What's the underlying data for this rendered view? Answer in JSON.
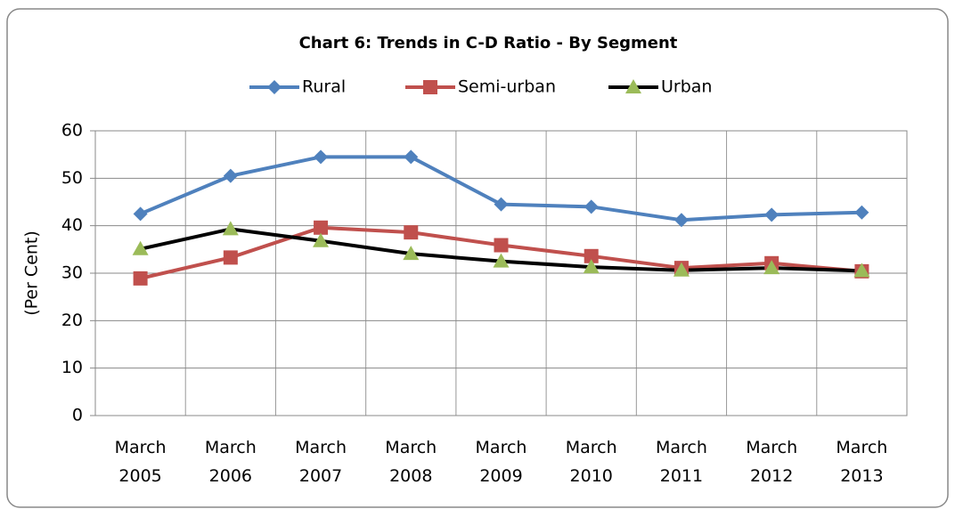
{
  "chart_data": {
    "type": "line",
    "title": "Chart 6: Trends in C-D Ratio - By Segment",
    "y_label": "(Per Cent)",
    "categories": [
      "March 2005",
      "March 2006",
      "March 2007",
      "March 2008",
      "March 2009",
      "March 2010",
      "March 2011",
      "March 2012",
      "March 2013"
    ],
    "series": [
      {
        "name": "Rural",
        "color": "#4f81bd",
        "marker": "diamond",
        "marker_color": "#4f81bd",
        "values": [
          42.5,
          50.5,
          54.5,
          54.5,
          44.5,
          44,
          41.2,
          42.3,
          42.8
        ]
      },
      {
        "name": "Semi-urban",
        "color": "#c0504d",
        "marker": "square",
        "marker_color": "#c0504d",
        "values": [
          28.9,
          33.3,
          39.6,
          38.6,
          35.9,
          33.6,
          31.1,
          32.1,
          30.4
        ]
      },
      {
        "name": "Urban",
        "color": "#000000",
        "marker": "triangle",
        "marker_color": "#9bbb59",
        "values": [
          35.1,
          39.3,
          36.8,
          34.1,
          32.5,
          31.3,
          30.6,
          31.1,
          30.5
        ]
      }
    ],
    "ylim": [
      0,
      60
    ],
    "yticks": [
      0,
      10,
      20,
      30,
      40,
      50,
      60
    ],
    "grid": true,
    "legend": "top"
  }
}
